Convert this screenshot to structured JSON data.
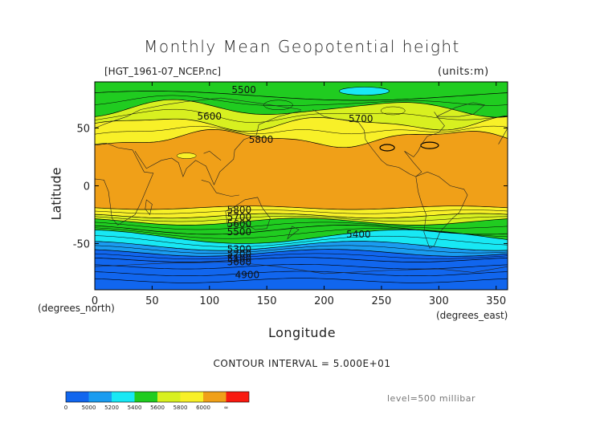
{
  "header": {
    "title": "Monthly Mean Geopotential height",
    "filename": "[HGT_1961-07_NCEP.nc]",
    "units": "(units:m)"
  },
  "axes": {
    "ylabel": "Latitude",
    "xlabel": "Longitude",
    "xunits_left": "(degrees_north)",
    "xunits_right": "(degrees_east)"
  },
  "footer": {
    "contour_interval": "CONTOUR INTERVAL = 5.000E+01",
    "level": "level=500 millibar"
  },
  "chart_data": {
    "type": "heatmap",
    "title": "Monthly Mean Geopotential height",
    "xlabel": "Longitude",
    "ylabel": "Latitude",
    "xlim": [
      0,
      360
    ],
    "ylim": [
      -90,
      90
    ],
    "x_ticks": [
      0,
      50,
      100,
      150,
      200,
      250,
      300,
      350
    ],
    "y_ticks": [
      50,
      0,
      -50
    ],
    "variable": "geopotential height",
    "units": "m",
    "level": "500 millibar",
    "contour_interval": 50,
    "contour_labels": [
      {
        "text": "5500",
        "lon": 130,
        "lat": 83
      },
      {
        "text": "5600",
        "lon": 100,
        "lat": 60
      },
      {
        "text": "5700",
        "lon": 232,
        "lat": 58
      },
      {
        "text": "5800",
        "lon": 145,
        "lat": 40
      },
      {
        "text": "5800",
        "lon": 126,
        "lat": -21
      },
      {
        "text": "5700",
        "lon": 126,
        "lat": -27
      },
      {
        "text": "5600",
        "lon": 126,
        "lat": -33
      },
      {
        "text": "5500",
        "lon": 126,
        "lat": -40
      },
      {
        "text": "5400",
        "lon": 230,
        "lat": -42
      },
      {
        "text": "5300",
        "lon": 126,
        "lat": -55
      },
      {
        "text": "5200",
        "lon": 126,
        "lat": -59
      },
      {
        "text": "5100",
        "lon": 126,
        "lat": -63
      },
      {
        "text": "5000",
        "lon": 126,
        "lat": -66
      },
      {
        "text": "4900",
        "lon": 133,
        "lat": -77
      }
    ],
    "colorbar": {
      "labels": [
        "0",
        "5000",
        "5200",
        "5400",
        "5600",
        "5800",
        "6000",
        "∞"
      ],
      "colors": [
        "#1166ee",
        "#1a9cf0",
        "#18e8f4",
        "#20cc20",
        "#d8f020",
        "#f8f028",
        "#f0a018",
        "#f81a10"
      ]
    }
  }
}
